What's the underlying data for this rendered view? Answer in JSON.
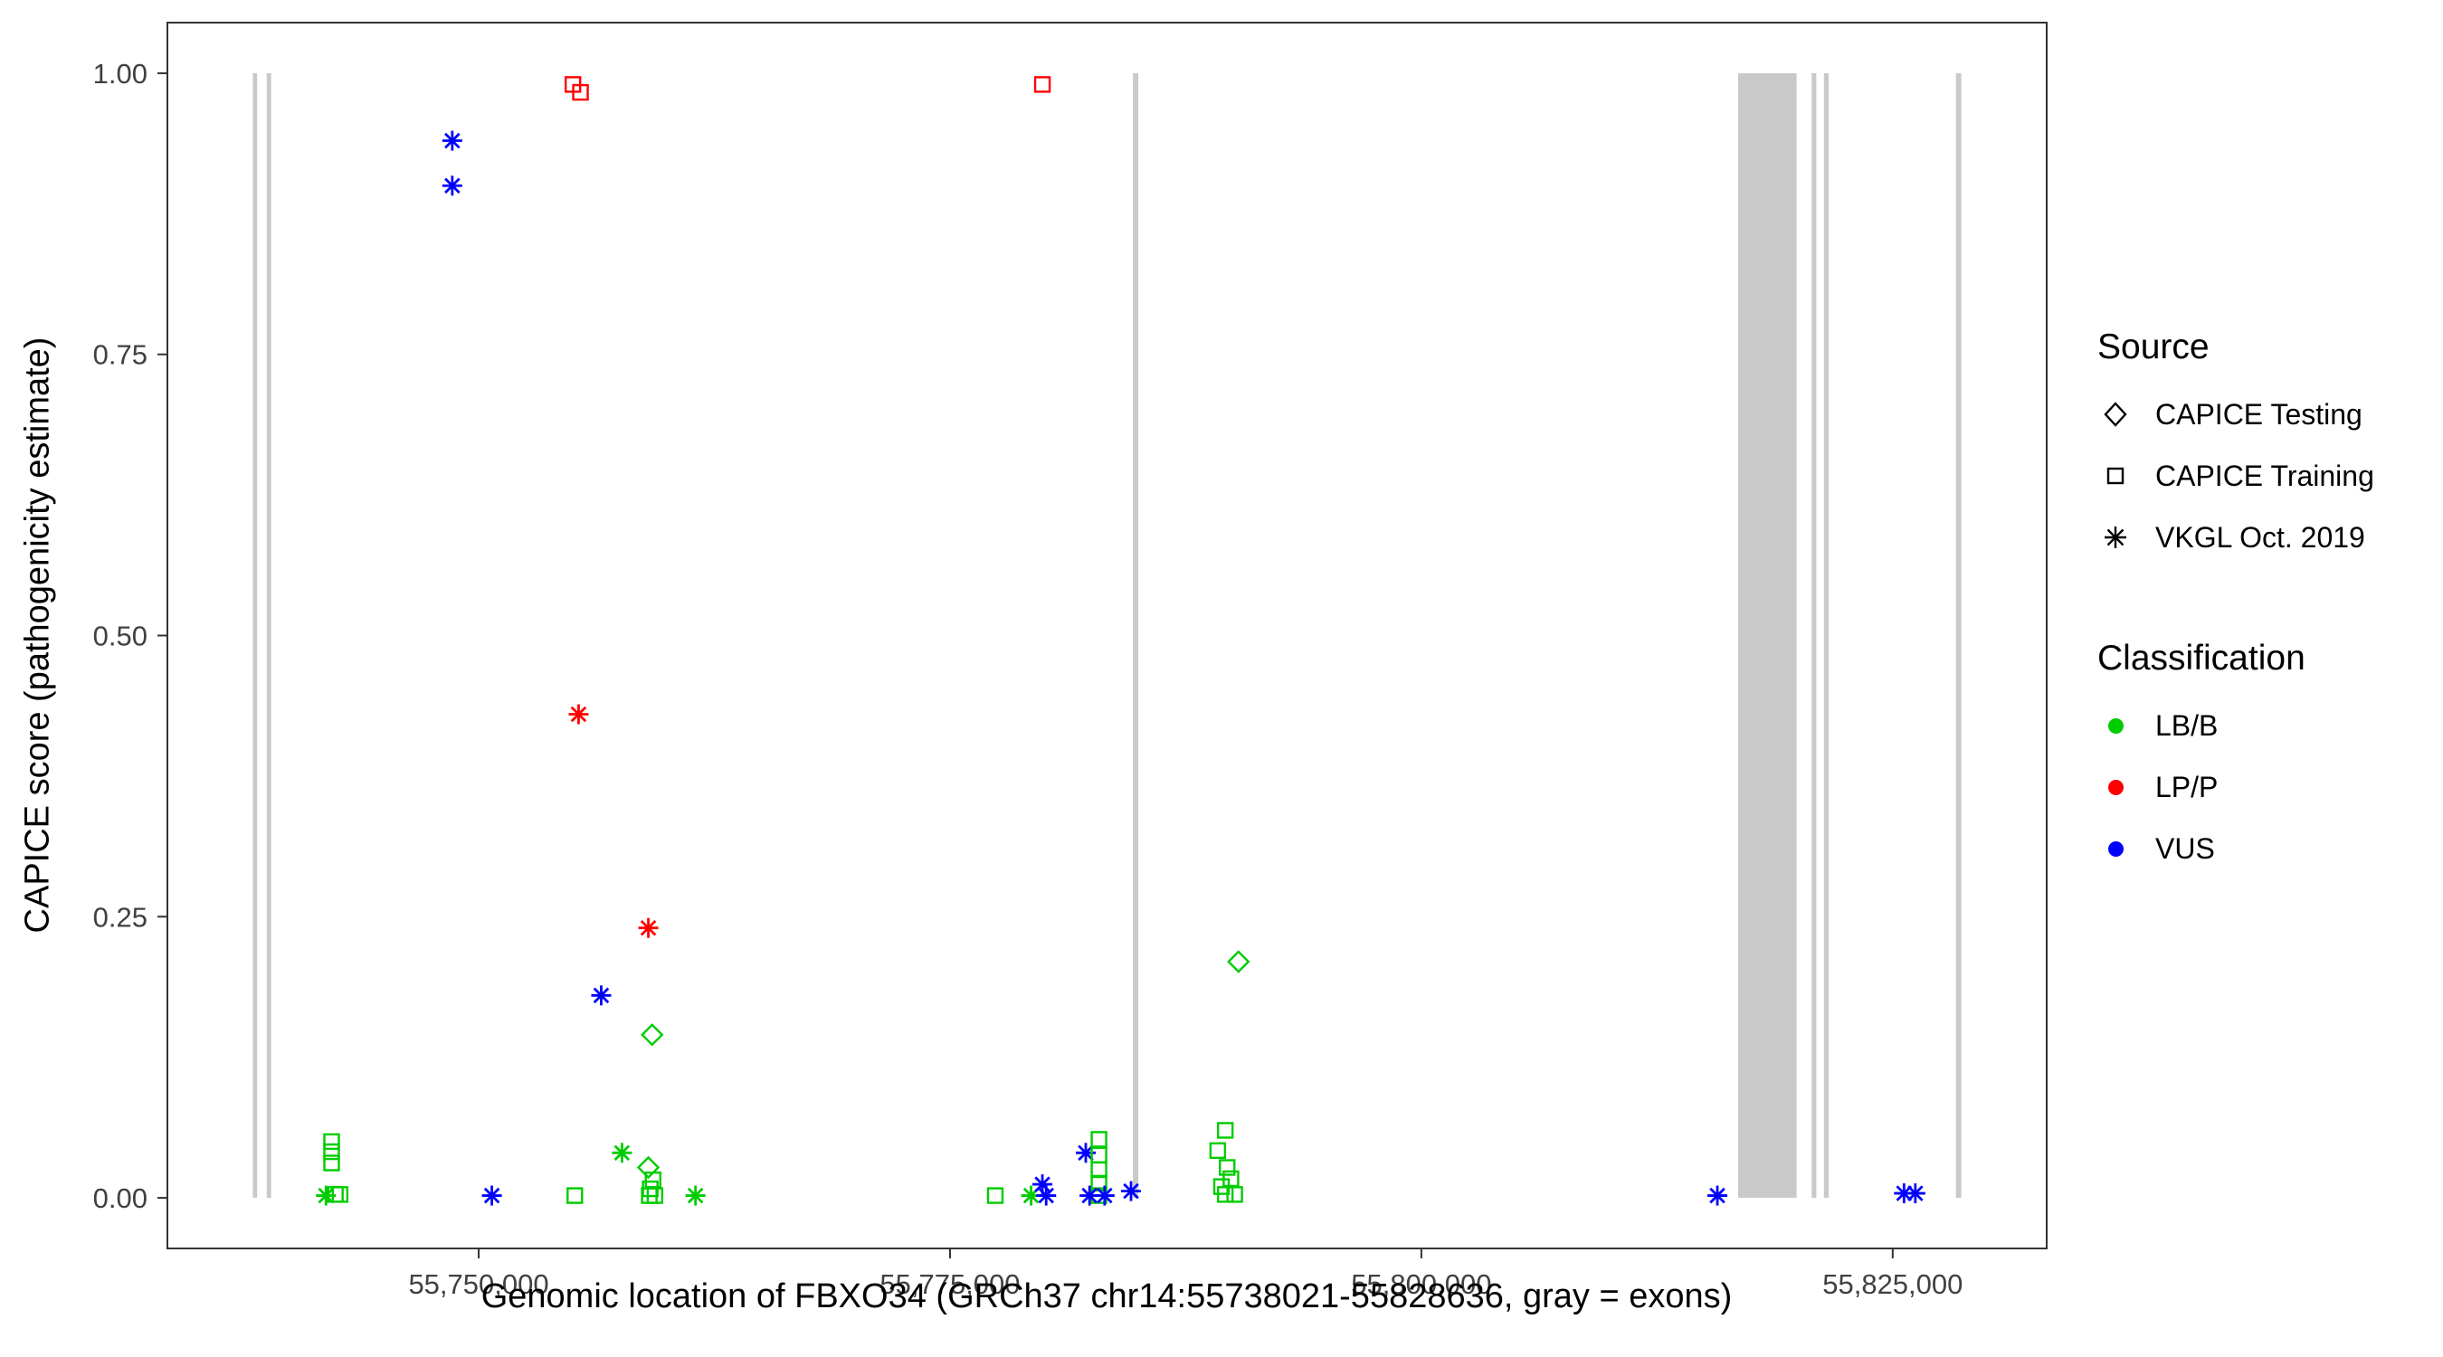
{
  "chart_data": {
    "type": "scatter",
    "title": "",
    "xlabel": "Genomic location of FBXO34 (GRCh37 chr14:55738021-55828636, gray = exons)",
    "ylabel": "CAPICE score (pathogenicity estimate)",
    "xlim": [
      55733490,
      55833167
    ],
    "ylim": [
      -0.045,
      1.045
    ],
    "grid": false,
    "x_ticks": [
      {
        "value": 55750000,
        "label": "55,750,000"
      },
      {
        "value": 55775000,
        "label": "55,775,000"
      },
      {
        "value": 55800000,
        "label": "55,800,000"
      },
      {
        "value": 55825000,
        "label": "55,825,000"
      }
    ],
    "y_ticks": [
      {
        "value": 0.0,
        "label": "0.00"
      },
      {
        "value": 0.25,
        "label": "0.25"
      },
      {
        "value": 0.5,
        "label": "0.50"
      },
      {
        "value": 0.75,
        "label": "0.75"
      },
      {
        "value": 1.0,
        "label": "1.00"
      }
    ],
    "exon_color": "#C9C9C9",
    "exons": [
      [
        55738021,
        55738250
      ],
      [
        55738760,
        55738990
      ],
      [
        55784700,
        55784990
      ],
      [
        55816800,
        55819900
      ],
      [
        55820700,
        55820950
      ],
      [
        55821350,
        55821600
      ],
      [
        55828350,
        55828636
      ]
    ],
    "classification_colors": {
      "LB/B": "#00CC00",
      "LP/P": "#FF0000",
      "VUS": "#0000FF"
    },
    "source_shapes": {
      "CAPICE Testing": "diamond",
      "CAPICE Training": "square",
      "VKGL Oct. 2019": "asterisk"
    },
    "points": [
      {
        "x": 55748600,
        "y": 0.94,
        "source": "VKGL Oct. 2019",
        "classification": "VUS"
      },
      {
        "x": 55748600,
        "y": 0.9,
        "source": "VKGL Oct. 2019",
        "classification": "VUS"
      },
      {
        "x": 55755000,
        "y": 0.99,
        "source": "CAPICE Training",
        "classification": "LP/P"
      },
      {
        "x": 55755400,
        "y": 0.983,
        "source": "CAPICE Training",
        "classification": "LP/P"
      },
      {
        "x": 55779900,
        "y": 0.99,
        "source": "CAPICE Training",
        "classification": "LP/P"
      },
      {
        "x": 55755300,
        "y": 0.43,
        "source": "VKGL Oct. 2019",
        "classification": "LP/P"
      },
      {
        "x": 55759000,
        "y": 0.24,
        "source": "VKGL Oct. 2019",
        "classification": "LP/P"
      },
      {
        "x": 55756500,
        "y": 0.18,
        "source": "VKGL Oct. 2019",
        "classification": "VUS"
      },
      {
        "x": 55759200,
        "y": 0.145,
        "source": "CAPICE Testing",
        "classification": "LB/B"
      },
      {
        "x": 55790300,
        "y": 0.21,
        "source": "CAPICE Testing",
        "classification": "LB/B"
      },
      {
        "x": 55742200,
        "y": 0.05,
        "source": "CAPICE Training",
        "classification": "LB/B"
      },
      {
        "x": 55742200,
        "y": 0.041,
        "source": "CAPICE Training",
        "classification": "LB/B"
      },
      {
        "x": 55742200,
        "y": 0.031,
        "source": "CAPICE Training",
        "classification": "LB/B"
      },
      {
        "x": 55741900,
        "y": 0.002,
        "source": "VKGL Oct. 2019",
        "classification": "LB/B"
      },
      {
        "x": 55742400,
        "y": 0.003,
        "source": "CAPICE Training",
        "classification": "LB/B"
      },
      {
        "x": 55742650,
        "y": 0.003,
        "source": "CAPICE Training",
        "classification": "LB/B"
      },
      {
        "x": 55750700,
        "y": 0.002,
        "source": "VKGL Oct. 2019",
        "classification": "VUS"
      },
      {
        "x": 55755100,
        "y": 0.002,
        "source": "CAPICE Training",
        "classification": "LB/B"
      },
      {
        "x": 55757600,
        "y": 0.04,
        "source": "VKGL Oct. 2019",
        "classification": "LB/B"
      },
      {
        "x": 55759000,
        "y": 0.027,
        "source": "CAPICE Testing",
        "classification": "LB/B"
      },
      {
        "x": 55759250,
        "y": 0.016,
        "source": "CAPICE Training",
        "classification": "LB/B"
      },
      {
        "x": 55759100,
        "y": 0.008,
        "source": "CAPICE Training",
        "classification": "LB/B"
      },
      {
        "x": 55759050,
        "y": 0.002,
        "source": "CAPICE Training",
        "classification": "LB/B"
      },
      {
        "x": 55759350,
        "y": 0.002,
        "source": "CAPICE Training",
        "classification": "LB/B"
      },
      {
        "x": 55761500,
        "y": 0.002,
        "source": "VKGL Oct. 2019",
        "classification": "LB/B"
      },
      {
        "x": 55777400,
        "y": 0.002,
        "source": "CAPICE Training",
        "classification": "LB/B"
      },
      {
        "x": 55779300,
        "y": 0.002,
        "source": "VKGL Oct. 2019",
        "classification": "LB/B"
      },
      {
        "x": 55779900,
        "y": 0.012,
        "source": "VKGL Oct. 2019",
        "classification": "VUS"
      },
      {
        "x": 55780100,
        "y": 0.002,
        "source": "VKGL Oct. 2019",
        "classification": "VUS"
      },
      {
        "x": 55782200,
        "y": 0.04,
        "source": "VKGL Oct. 2019",
        "classification": "VUS"
      },
      {
        "x": 55782900,
        "y": 0.052,
        "source": "CAPICE Training",
        "classification": "LB/B"
      },
      {
        "x": 55782900,
        "y": 0.038,
        "source": "CAPICE Training",
        "classification": "LB/B"
      },
      {
        "x": 55782900,
        "y": 0.025,
        "source": "CAPICE Training",
        "classification": "LB/B"
      },
      {
        "x": 55782900,
        "y": 0.013,
        "source": "CAPICE Training",
        "classification": "LB/B"
      },
      {
        "x": 55782900,
        "y": 0.002,
        "source": "CAPICE Training",
        "classification": "LB/B"
      },
      {
        "x": 55782400,
        "y": 0.002,
        "source": "VKGL Oct. 2019",
        "classification": "VUS"
      },
      {
        "x": 55783200,
        "y": 0.002,
        "source": "VKGL Oct. 2019",
        "classification": "VUS"
      },
      {
        "x": 55784600,
        "y": 0.006,
        "source": "VKGL Oct. 2019",
        "classification": "VUS"
      },
      {
        "x": 55789600,
        "y": 0.06,
        "source": "CAPICE Training",
        "classification": "LB/B"
      },
      {
        "x": 55789200,
        "y": 0.042,
        "source": "CAPICE Training",
        "classification": "LB/B"
      },
      {
        "x": 55789700,
        "y": 0.027,
        "source": "CAPICE Training",
        "classification": "LB/B"
      },
      {
        "x": 55789900,
        "y": 0.017,
        "source": "CAPICE Training",
        "classification": "LB/B"
      },
      {
        "x": 55789400,
        "y": 0.01,
        "source": "CAPICE Training",
        "classification": "LB/B"
      },
      {
        "x": 55789600,
        "y": 0.003,
        "source": "CAPICE Training",
        "classification": "LB/B"
      },
      {
        "x": 55790100,
        "y": 0.003,
        "source": "CAPICE Training",
        "classification": "LB/B"
      },
      {
        "x": 55815700,
        "y": 0.002,
        "source": "VKGL Oct. 2019",
        "classification": "VUS"
      },
      {
        "x": 55825600,
        "y": 0.004,
        "source": "VKGL Oct. 2019",
        "classification": "VUS"
      },
      {
        "x": 55826200,
        "y": 0.004,
        "source": "VKGL Oct. 2019",
        "classification": "VUS"
      }
    ]
  },
  "legend": {
    "source": {
      "title": "Source",
      "items": [
        {
          "label": "CAPICE Testing",
          "shape": "diamond"
        },
        {
          "label": "CAPICE Training",
          "shape": "square"
        },
        {
          "label": "VKGL Oct. 2019",
          "shape": "asterisk"
        }
      ]
    },
    "classification": {
      "title": "Classification",
      "items": [
        {
          "label": "LB/B",
          "color": "#00CC00"
        },
        {
          "label": "LP/P",
          "color": "#FF0000"
        },
        {
          "label": "VUS",
          "color": "#0000FF"
        }
      ]
    }
  }
}
